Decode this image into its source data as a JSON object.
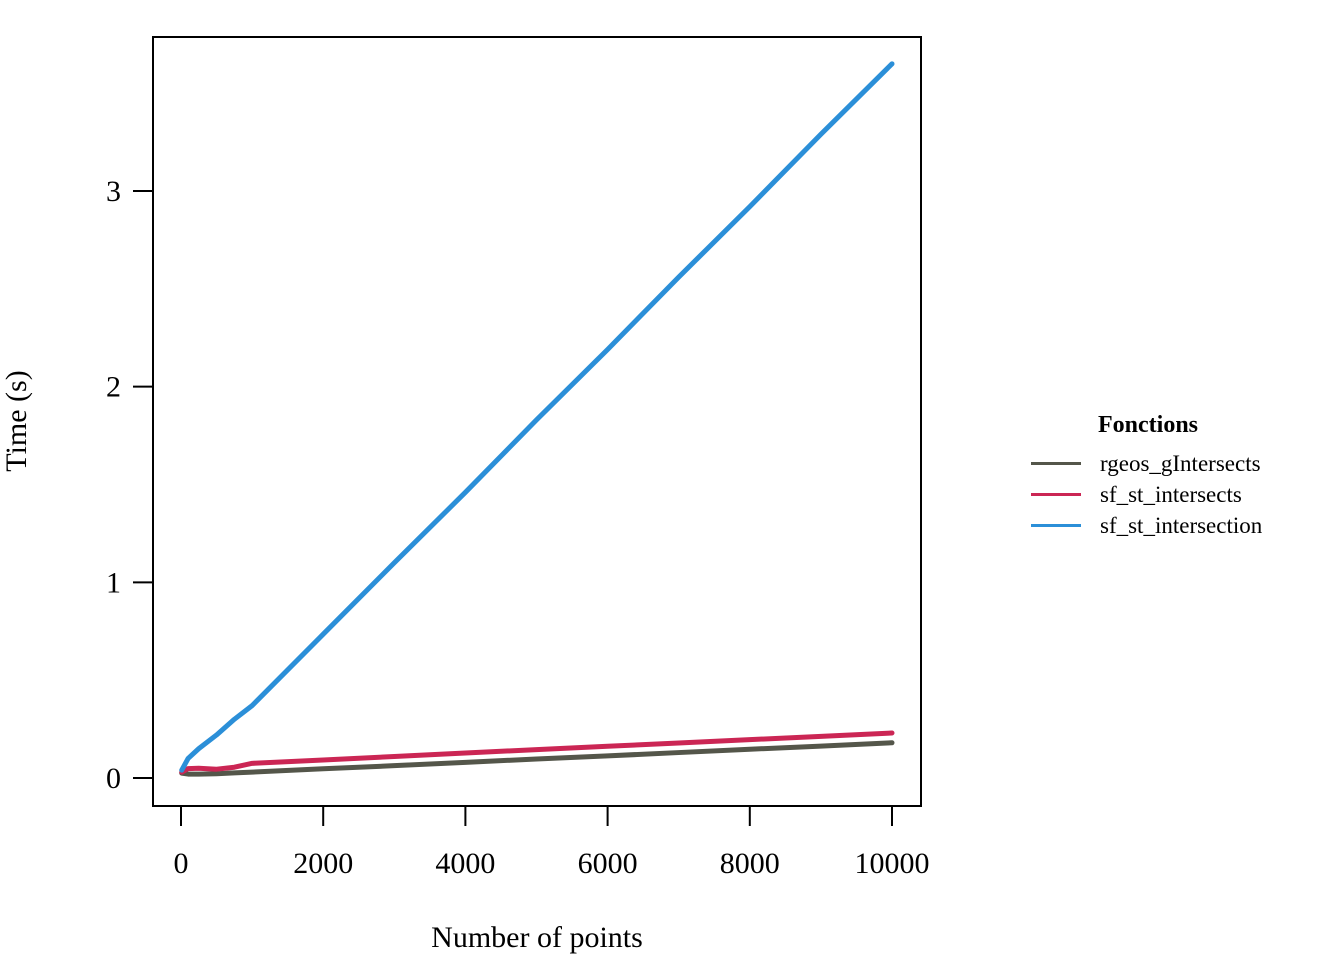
{
  "figure": {
    "background_color": "#ffffff",
    "axis_color": "#000000",
    "x_axis": {
      "title": "Number of points",
      "tick_labels": [
        "0",
        "2000",
        "4000",
        "6000",
        "8000",
        "10000"
      ]
    },
    "y_axis": {
      "title": "Time (s)",
      "tick_labels": [
        "0",
        "1",
        "2",
        "3"
      ]
    },
    "legend": {
      "title": "Fonctions",
      "items": [
        "rgeos_gIntersects",
        "sf_st_intersects",
        "sf_st_intersection"
      ]
    }
  },
  "chart_data": {
    "type": "line",
    "title": "",
    "xlabel": "Number of points",
    "ylabel": "Time (s)",
    "xlim": [
      0,
      10000
    ],
    "ylim": [
      0,
      3.79
    ],
    "x_ticks": [
      0,
      2000,
      4000,
      6000,
      8000,
      10000
    ],
    "y_ticks": [
      0,
      1,
      2,
      3
    ],
    "x_tick_labels": [
      "0",
      "2000",
      "4000",
      "6000",
      "8000",
      "10000"
    ],
    "y_tick_labels": [
      "0",
      "1",
      "2",
      "3"
    ],
    "grid": false,
    "legend_position": "right",
    "legend_title": "Fonctions",
    "series": [
      {
        "name": "rgeos_gIntersects",
        "color": "#54564A",
        "x": [
          10,
          100,
          250,
          500,
          750,
          1000,
          2000,
          3000,
          4000,
          5000,
          6000,
          7000,
          8000,
          9000,
          10000
        ],
        "y": [
          0.025,
          0.02,
          0.02,
          0.022,
          0.026,
          0.03,
          0.047,
          0.063,
          0.08,
          0.097,
          0.113,
          0.13,
          0.147,
          0.163,
          0.18
        ]
      },
      {
        "name": "sf_st_intersects",
        "color": "#CB2654",
        "x": [
          10,
          100,
          250,
          500,
          750,
          1000,
          2000,
          3000,
          4000,
          5000,
          6000,
          7000,
          8000,
          9000,
          10000
        ],
        "y": [
          0.03,
          0.048,
          0.05,
          0.045,
          0.055,
          0.075,
          0.092,
          0.11,
          0.128,
          0.145,
          0.162,
          0.179,
          0.196,
          0.213,
          0.23
        ]
      },
      {
        "name": "sf_st_intersection",
        "color": "#2B8FD8",
        "x": [
          10,
          100,
          250,
          500,
          750,
          1000,
          2000,
          3000,
          4000,
          5000,
          6000,
          7000,
          8000,
          9000,
          10000
        ],
        "y": [
          0.04,
          0.1,
          0.15,
          0.22,
          0.3,
          0.37,
          0.735,
          1.1,
          1.46,
          1.83,
          2.19,
          2.56,
          2.92,
          3.29,
          3.65
        ]
      }
    ]
  }
}
